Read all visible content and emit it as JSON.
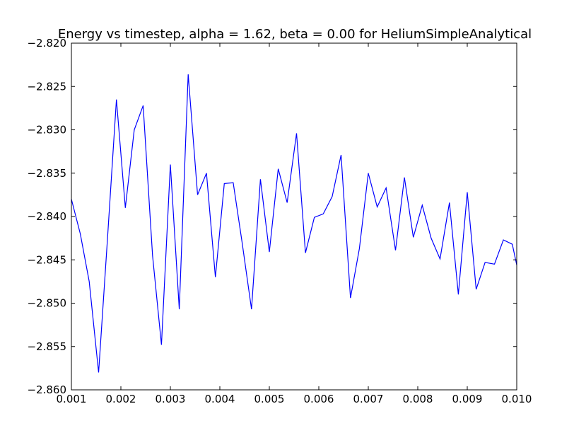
{
  "chart_data": {
    "type": "line",
    "title": "Energy vs timestep, alpha = 1.62, beta = 0.00 for HeliumSimpleAnalytical",
    "xlabel": "",
    "ylabel": "",
    "xlim": [
      0.001,
      0.01
    ],
    "ylim": [
      -2.86,
      -2.82
    ],
    "grid": false,
    "x_ticks": [
      "0.001",
      "0.002",
      "0.003",
      "0.004",
      "0.005",
      "0.006",
      "0.007",
      "0.008",
      "0.009",
      "0.010"
    ],
    "y_ticks": [
      "−2.820",
      "−2.825",
      "−2.830",
      "−2.835",
      "−2.840",
      "−2.845",
      "−2.850",
      "−2.855",
      "−2.860"
    ],
    "series": [
      {
        "color": "#0000ff",
        "x": [
          0.001,
          0.00118,
          0.00136,
          0.00155,
          0.00173,
          0.00191,
          0.00209,
          0.00227,
          0.00245,
          0.00264,
          0.00282,
          0.003,
          0.00318,
          0.00336,
          0.00355,
          0.00373,
          0.00391,
          0.00409,
          0.00427,
          0.00445,
          0.00464,
          0.00482,
          0.005,
          0.00518,
          0.00536,
          0.00555,
          0.00573,
          0.00591,
          0.00609,
          0.00627,
          0.00645,
          0.00664,
          0.00682,
          0.007,
          0.00718,
          0.00736,
          0.00755,
          0.00773,
          0.00791,
          0.00809,
          0.00827,
          0.00845,
          0.00864,
          0.00882,
          0.009,
          0.00918,
          0.00936,
          0.00955,
          0.00973,
          0.00991,
          0.01
        ],
        "values": [
          -2.838,
          -2.842,
          -2.8475,
          -2.858,
          -2.8425,
          -2.8265,
          -2.839,
          -2.83,
          -2.8272,
          -2.8445,
          -2.8548,
          -2.834,
          -2.8507,
          -2.8236,
          -2.8375,
          -2.835,
          -2.847,
          -2.8362,
          -2.8361,
          -2.843,
          -2.8507,
          -2.8357,
          -2.8441,
          -2.8345,
          -2.8384,
          -2.8304,
          -2.8442,
          -2.8401,
          -2.8397,
          -2.8377,
          -2.8329,
          -2.8494,
          -2.8437,
          -2.835,
          -2.8389,
          -2.8367,
          -2.8439,
          -2.8355,
          -2.8424,
          -2.8387,
          -2.8425,
          -2.8449,
          -2.8384,
          -2.849,
          -2.8372,
          -2.8484,
          -2.8453,
          -2.8455,
          -2.8427,
          -2.8432,
          -2.8456
        ]
      }
    ]
  }
}
